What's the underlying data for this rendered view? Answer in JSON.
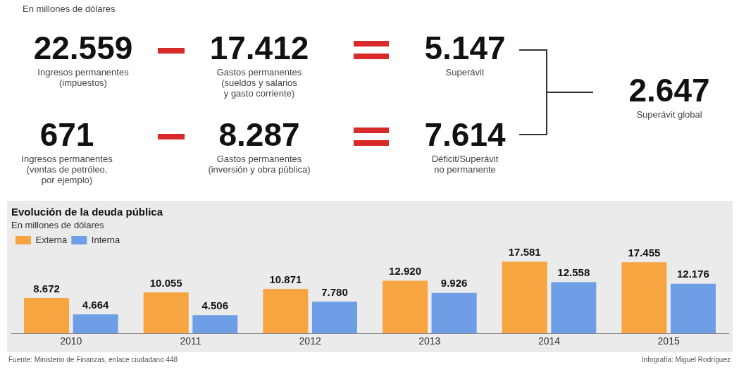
{
  "chart_data": [
    {
      "type": "other",
      "annotations": [
        "En millones de dólares",
        "22.559",
        "Ingresos permanentes\n(impuestos)",
        "17.412",
        "Gastos permanentes\n(sueldos y salarios\ny gasto corriente)",
        "5.147",
        "Superávit",
        "671",
        "Ingresos permanentes\n(ventas de petróleo,\npor ejemplo)",
        "8.287",
        "Gastos permanentes\n(inversión y obra pública)",
        "7.614",
        "Déficit/Superávit\nno permanente",
        "2.647",
        "Superávit global"
      ]
    },
    {
      "type": "bar",
      "title": "Evolución de la deuda pública",
      "subtitle": "En millones de dólares",
      "categories": [
        "2010",
        "2011",
        "2012",
        "2013",
        "2014",
        "2015"
      ],
      "series": [
        {
          "name": "Externa",
          "color": "#f7a541",
          "values": [
            8672,
            10055,
            10871,
            12920,
            17581,
            17455
          ],
          "value_labels": [
            "8.672",
            "10.055",
            "10.871",
            "12.920",
            "17.581",
            "17.455"
          ]
        },
        {
          "name": "Interna",
          "color": "#6e9fe6",
          "values": [
            4664,
            4506,
            7780,
            9926,
            12558,
            12176
          ],
          "value_labels": [
            "4.664",
            "4.506",
            "7.780",
            "9.926",
            "12.558",
            "12.176"
          ]
        }
      ],
      "legend": "top left",
      "grid": false,
      "annotations": [
        "Fuente: Ministerio de Finanzas, enlace ciudadano 448",
        "Infografía: Miguel Rodríguez"
      ]
    }
  ]
}
